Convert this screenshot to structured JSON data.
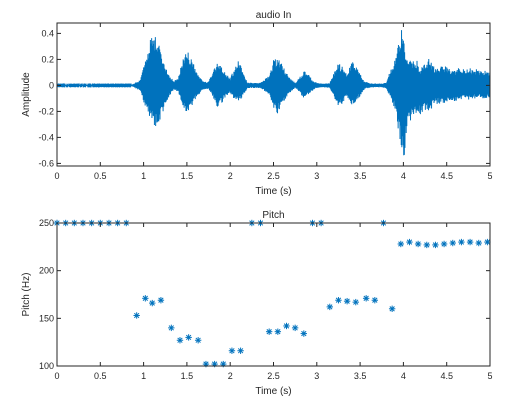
{
  "chart_data": [
    {
      "type": "line",
      "title": "audio In",
      "xlabel": "Time (s)",
      "ylabel": "Amplitude",
      "xlim": [
        0,
        5
      ],
      "ylim": [
        -0.62,
        0.48
      ],
      "xticks": [
        0,
        0.5,
        1,
        1.5,
        2,
        2.5,
        3,
        3.5,
        4,
        4.5,
        5
      ],
      "xtick_labels": [
        "0",
        "0.5",
        "1",
        "1.5",
        "2",
        "2.5",
        "3",
        "3.5",
        "4",
        "4.5",
        "5"
      ],
      "yticks": [
        -0.6,
        -0.4,
        -0.2,
        0,
        0.2,
        0.4
      ],
      "ytick_labels": [
        "-0.6",
        "-0.4",
        "-0.2",
        "0",
        "0.2",
        "0.4"
      ],
      "color": "#0072bd",
      "series": [
        {
          "x": [
            0.0,
            0.86,
            0.96,
            1.0,
            1.05,
            1.1,
            1.15,
            1.2,
            1.25,
            1.3,
            1.35,
            1.4,
            1.45,
            1.5,
            1.55,
            1.6,
            1.65,
            1.7,
            1.75,
            1.8,
            1.85,
            1.9,
            1.95,
            2.0,
            2.05,
            2.1,
            2.15,
            2.2,
            2.35,
            2.45,
            2.5,
            2.55,
            2.6,
            2.65,
            2.7,
            2.75,
            2.8,
            2.85,
            2.9,
            2.95,
            3.0,
            3.05,
            3.1,
            3.15,
            3.2,
            3.25,
            3.3,
            3.35,
            3.4,
            3.45,
            3.5,
            3.55,
            3.6,
            3.65,
            3.7,
            3.75,
            3.8,
            3.85,
            3.9,
            3.95,
            3.98,
            4.0,
            4.03,
            4.06,
            4.1,
            4.15,
            4.2,
            4.25,
            4.3,
            4.35,
            4.4,
            4.45,
            4.5,
            4.55,
            4.6,
            4.65,
            4.7,
            4.75,
            4.8,
            4.85,
            4.9,
            4.95,
            5.0
          ],
          "upper": [
            0.005,
            0.005,
            0.04,
            0.16,
            0.3,
            0.41,
            0.38,
            0.27,
            0.16,
            0.08,
            0.03,
            0.06,
            0.2,
            0.27,
            0.22,
            0.12,
            0.06,
            0.03,
            0.03,
            0.1,
            0.18,
            0.14,
            0.09,
            0.06,
            0.13,
            0.2,
            0.1,
            0.02,
            0.02,
            0.08,
            0.2,
            0.22,
            0.16,
            0.1,
            0.05,
            0.02,
            0.06,
            0.11,
            0.09,
            0.04,
            0.02,
            0.015,
            0.015,
            0.02,
            0.1,
            0.17,
            0.15,
            0.08,
            0.19,
            0.16,
            0.09,
            0.03,
            0.02,
            0.015,
            0.015,
            0.015,
            0.02,
            0.12,
            0.2,
            0.36,
            0.45,
            0.35,
            0.27,
            0.22,
            0.18,
            0.2,
            0.13,
            0.17,
            0.21,
            0.15,
            0.14,
            0.16,
            0.15,
            0.13,
            0.12,
            0.15,
            0.12,
            0.14,
            0.12,
            0.13,
            0.11,
            0.12,
            0.1
          ],
          "lower": [
            -0.005,
            -0.005,
            -0.04,
            -0.13,
            -0.22,
            -0.29,
            -0.33,
            -0.26,
            -0.16,
            -0.08,
            -0.03,
            -0.05,
            -0.16,
            -0.23,
            -0.19,
            -0.11,
            -0.06,
            -0.03,
            -0.03,
            -0.09,
            -0.17,
            -0.14,
            -0.08,
            -0.06,
            -0.11,
            -0.13,
            -0.08,
            -0.02,
            -0.02,
            -0.07,
            -0.19,
            -0.22,
            -0.15,
            -0.09,
            -0.05,
            -0.02,
            -0.05,
            -0.1,
            -0.08,
            -0.04,
            -0.02,
            -0.015,
            -0.015,
            -0.02,
            -0.09,
            -0.16,
            -0.14,
            -0.08,
            -0.16,
            -0.14,
            -0.08,
            -0.03,
            -0.02,
            -0.015,
            -0.015,
            -0.015,
            -0.02,
            -0.1,
            -0.18,
            -0.38,
            -0.52,
            -0.61,
            -0.4,
            -0.28,
            -0.26,
            -0.24,
            -0.22,
            -0.2,
            -0.2,
            -0.16,
            -0.14,
            -0.14,
            -0.13,
            -0.12,
            -0.12,
            -0.11,
            -0.11,
            -0.11,
            -0.1,
            -0.1,
            -0.1,
            -0.1,
            -0.09
          ]
        }
      ]
    },
    {
      "type": "scatter",
      "title": "Pitch",
      "xlabel": "Time (s)",
      "ylabel": "Pitch (Hz)",
      "xlim": [
        0,
        5
      ],
      "ylim": [
        100,
        250
      ],
      "xticks": [
        0,
        0.5,
        1,
        1.5,
        2,
        2.5,
        3,
        3.5,
        4,
        4.5,
        5
      ],
      "xtick_labels": [
        "0",
        "0.5",
        "1",
        "1.5",
        "2",
        "2.5",
        "3",
        "3.5",
        "4",
        "4.5",
        "5"
      ],
      "yticks": [
        100,
        150,
        200,
        250
      ],
      "ytick_labels": [
        "100",
        "150",
        "200",
        "250"
      ],
      "marker": "asterisk",
      "color": "#0072bd",
      "series": [
        {
          "x": [
            0.0,
            0.1,
            0.2,
            0.3,
            0.4,
            0.5,
            0.6,
            0.7,
            0.8,
            0.92,
            1.02,
            1.1,
            1.2,
            1.32,
            1.42,
            1.52,
            1.63,
            1.72,
            1.82,
            1.92,
            2.02,
            2.12,
            2.25,
            2.35,
            2.45,
            2.55,
            2.65,
            2.75,
            2.85,
            2.95,
            3.05,
            3.15,
            3.25,
            3.35,
            3.45,
            3.57,
            3.67,
            3.77,
            3.87,
            3.97,
            4.07,
            4.17,
            4.27,
            4.37,
            4.47,
            4.57,
            4.67,
            4.77,
            4.87,
            4.97
          ],
          "y": [
            250,
            250,
            250,
            250,
            250,
            250,
            250,
            250,
            250,
            153,
            171,
            166,
            169,
            140,
            127,
            130,
            127,
            102,
            102,
            102,
            116,
            116,
            250,
            250,
            136,
            136,
            142,
            140,
            134,
            250,
            250,
            162,
            169,
            168,
            167,
            171,
            169,
            250,
            160,
            228,
            230,
            228,
            227,
            227,
            228,
            229,
            230,
            230,
            229,
            230
          ]
        }
      ]
    }
  ]
}
